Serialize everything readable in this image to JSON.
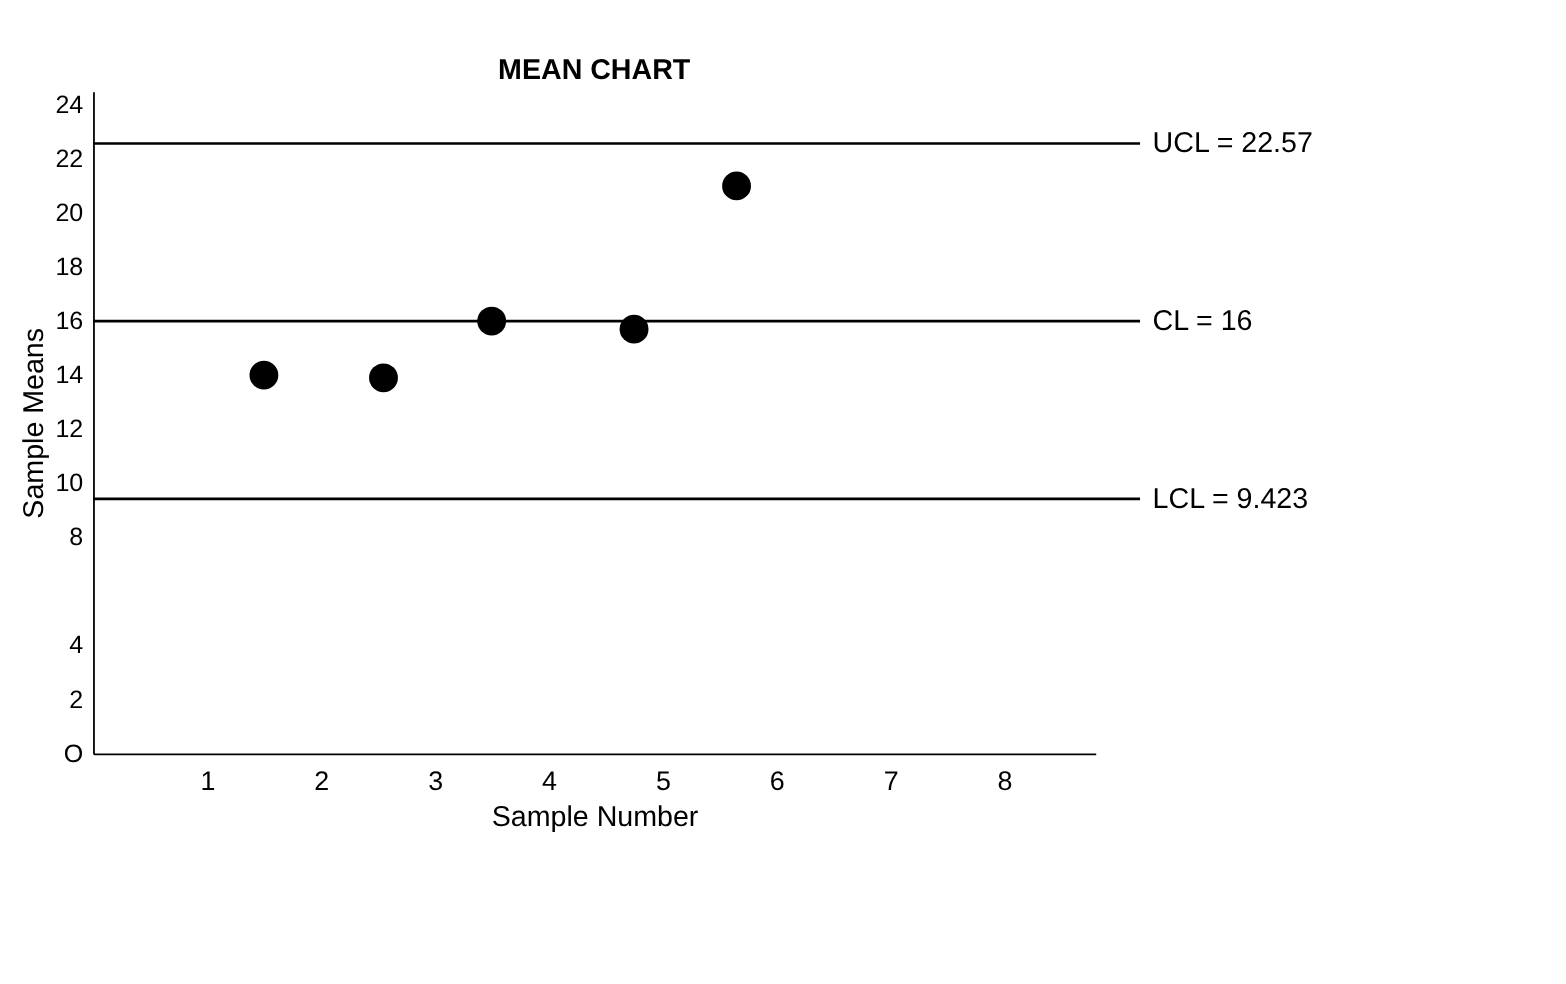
{
  "chart_data": {
    "type": "scatter",
    "title": "MEAN CHART",
    "xlabel": "Sample Number",
    "ylabel": "Sample Means",
    "x": [
      1.5,
      2.55,
      3.5,
      4.75,
      5.65
    ],
    "series": [
      {
        "color": "#000000",
        "values": [
          14,
          13.9,
          16,
          15.7,
          21
        ]
      }
    ],
    "marker": "circle",
    "xlim": [
      0,
      8.8
    ],
    "xticks": [
      1,
      2,
      3,
      4,
      5,
      6,
      7,
      8
    ],
    "ylim": [
      0,
      24.5
    ],
    "yticks": [
      {
        "value": 0,
        "label": "O"
      },
      2,
      4,
      8,
      10,
      12,
      14,
      16,
      18,
      20,
      22,
      24
    ],
    "ref_lines": [
      {
        "axis": "y",
        "value": 22.57,
        "label": "UCL = 22.57",
        "color": "#000000"
      },
      {
        "axis": "y",
        "value": 16,
        "label": "CL = 16",
        "color": "#000000"
      },
      {
        "axis": "y",
        "value": 9.423,
        "label": "LCL = 9.423",
        "color": "#000000"
      }
    ],
    "grid": false
  }
}
